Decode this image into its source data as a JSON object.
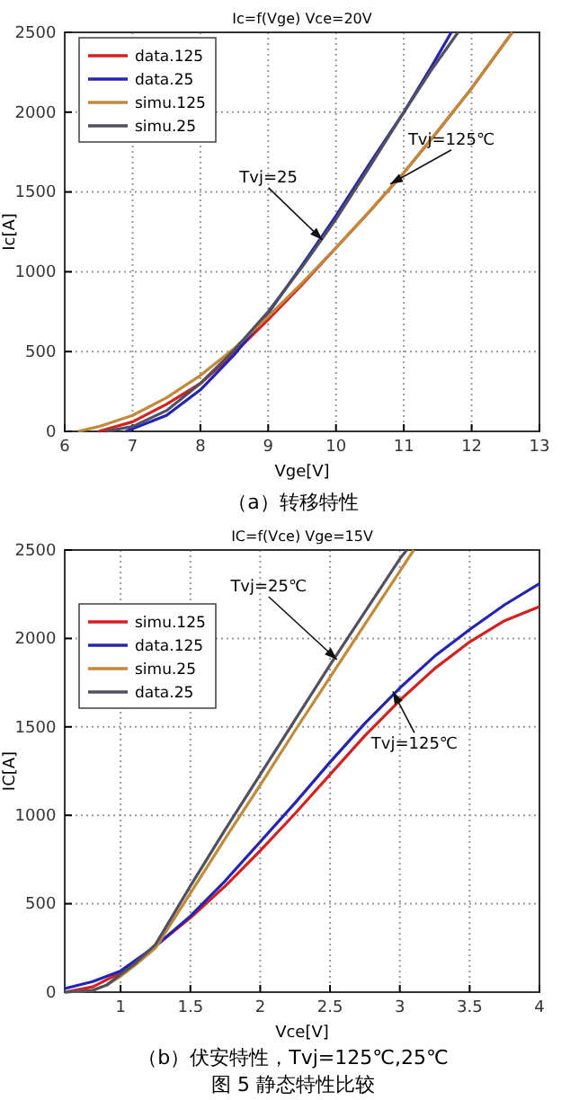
{
  "chart_data": [
    {
      "type": "line",
      "title": "Ic=f(Vge) Vce=20V",
      "xlabel": "Vge[V]",
      "ylabel": "Ic[A]",
      "xlim": [
        6,
        13
      ],
      "xticks": [
        6,
        7,
        8,
        9,
        10,
        11,
        12,
        13
      ],
      "ylim": [
        0,
        2500
      ],
      "yticks": [
        0,
        500,
        1000,
        1500,
        2000,
        2500
      ],
      "grid": true,
      "legend": "top left",
      "line_style": "solid",
      "marker": "none",
      "annotations": [
        {
          "text": "Tvj=25",
          "x": 9.8,
          "y": 1200
        },
        {
          "text": "Tvj=125℃",
          "x": 10.8,
          "y": 1550
        },
        "（a）转移特性"
      ],
      "series": [
        {
          "name": "data.125",
          "color": "#d42020",
          "x": [
            6.5,
            7,
            7.5,
            8,
            8.5,
            9,
            9.5,
            10,
            10.5,
            11,
            11.5,
            12,
            12.6
          ],
          "values": [
            0,
            60,
            170,
            300,
            490,
            700,
            920,
            1150,
            1380,
            1620,
            1880,
            2150,
            2500
          ]
        },
        {
          "name": "data.25",
          "color": "#2424b4",
          "x": [
            6.9,
            7.5,
            8,
            8.5,
            9,
            9.5,
            10,
            10.5,
            11,
            11.4,
            11.7
          ],
          "values": [
            0,
            100,
            260,
            480,
            740,
            1040,
            1350,
            1680,
            2000,
            2280,
            2500
          ]
        },
        {
          "name": "simu.125",
          "color": "#c08a38",
          "x": [
            6.2,
            6.5,
            7,
            7.5,
            8,
            8.5,
            9,
            9.5,
            10,
            10.5,
            11,
            11.5,
            12,
            12.6
          ],
          "values": [
            0,
            30,
            100,
            210,
            350,
            520,
            720,
            930,
            1150,
            1380,
            1620,
            1880,
            2150,
            2500
          ]
        },
        {
          "name": "simu.25",
          "color": "#505060",
          "x": [
            6.6,
            7,
            7.5,
            8,
            8.5,
            9,
            9.5,
            10,
            10.5,
            11,
            11.4,
            11.8
          ],
          "values": [
            0,
            30,
            130,
            300,
            510,
            750,
            1030,
            1330,
            1660,
            2000,
            2260,
            2500
          ]
        }
      ]
    },
    {
      "type": "line",
      "title": "IC=f(Vce) Vge=15V",
      "xlabel": "Vce[V]",
      "ylabel": "IC[A]",
      "xlim": [
        0.6,
        4
      ],
      "xticks": [
        1,
        1.5,
        2,
        2.5,
        3,
        3.5,
        4
      ],
      "ylim": [
        0,
        2500
      ],
      "yticks": [
        0,
        500,
        1000,
        1500,
        2000,
        2500
      ],
      "grid": true,
      "legend": "top left",
      "line_style": "solid",
      "marker": "none",
      "annotations": [
        {
          "text": "Tvj=25℃",
          "x": 2.55,
          "y": 1880
        },
        {
          "text": "Tvj=125℃",
          "x": 2.95,
          "y": 1700
        },
        "（b）伏安特性，Tvj=125℃,25℃",
        "图 5 静态特性比较"
      ],
      "series": [
        {
          "name": "simu.125",
          "color": "#d42020",
          "x": [
            0.6,
            0.8,
            1,
            1.25,
            1.5,
            1.75,
            2,
            2.25,
            2.5,
            2.75,
            3,
            3.25,
            3.5,
            3.75,
            4
          ],
          "values": [
            0,
            30,
            110,
            260,
            420,
            600,
            800,
            1010,
            1230,
            1450,
            1650,
            1830,
            1980,
            2100,
            2180
          ]
        },
        {
          "name": "data.125",
          "color": "#2424b4",
          "x": [
            0.6,
            0.8,
            1,
            1.25,
            1.5,
            1.75,
            2,
            2.25,
            2.5,
            2.75,
            3,
            3.25,
            3.5,
            3.75,
            4
          ],
          "values": [
            20,
            60,
            120,
            260,
            430,
            630,
            850,
            1070,
            1300,
            1520,
            1720,
            1900,
            2050,
            2190,
            2310
          ]
        },
        {
          "name": "simu.25",
          "color": "#c08a38",
          "x": [
            0.6,
            0.8,
            0.9,
            1,
            1.1,
            1.25,
            1.5,
            1.75,
            2,
            2.25,
            2.5,
            2.75,
            3,
            3.1
          ],
          "values": [
            0,
            10,
            40,
            90,
            150,
            250,
            560,
            870,
            1170,
            1480,
            1780,
            2080,
            2380,
            2500
          ]
        },
        {
          "name": "data.25",
          "color": "#505060",
          "x": [
            0.6,
            0.8,
            0.9,
            1,
            1.1,
            1.25,
            1.5,
            1.75,
            2,
            2.25,
            2.5,
            2.75,
            3,
            3.05
          ],
          "values": [
            0,
            10,
            40,
            100,
            160,
            270,
            600,
            920,
            1230,
            1540,
            1850,
            2150,
            2450,
            2500
          ]
        }
      ]
    }
  ]
}
